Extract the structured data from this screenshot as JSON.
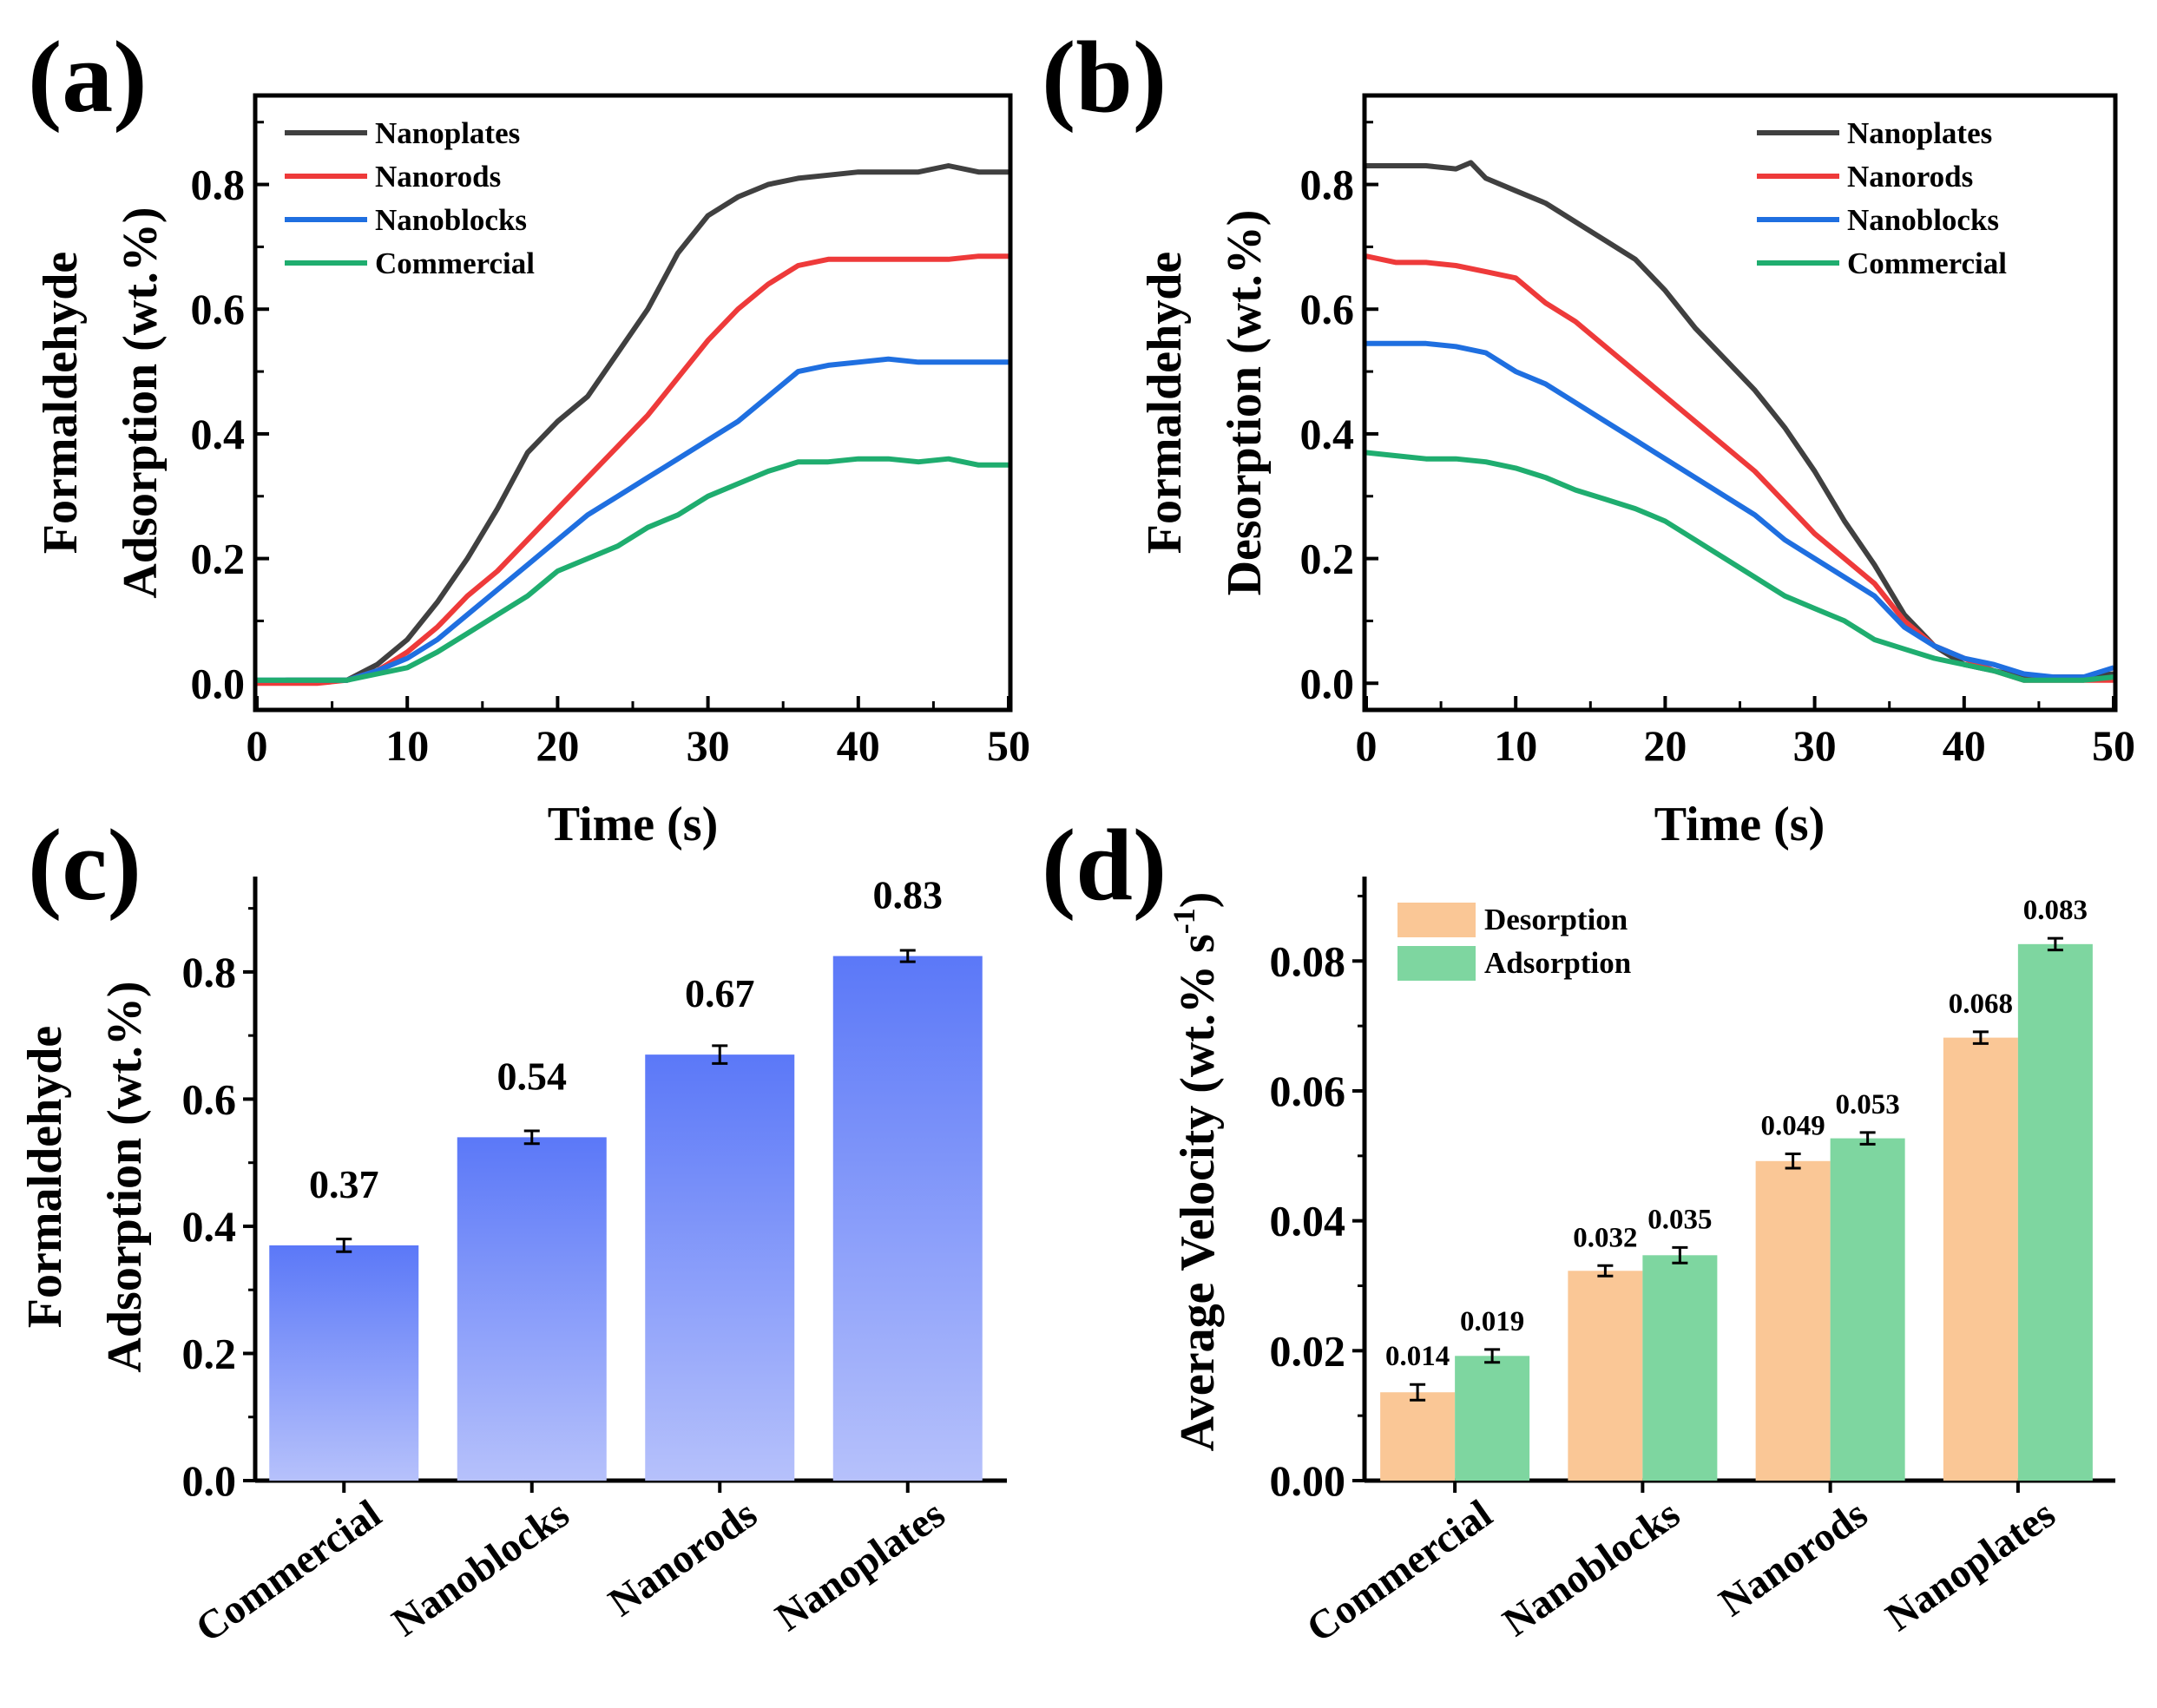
{
  "colors": {
    "nanoplates": "#404040",
    "nanorods": "#ee3a3a",
    "nanoblocks": "#1f6fe0",
    "commercial": "#1fad6f",
    "bar_top": "#5b78f8",
    "bar_bottom": "#b6c1fb",
    "desorption": "#fac796",
    "adsorption": "#7ed6a0"
  },
  "chart_data": [
    {
      "id": "a",
      "panel_label": "(a)",
      "type": "line",
      "xlabel": "Time (s)",
      "ylabel_line1": "Formaldehyde",
      "ylabel_line2": "Adsorption (wt.%)",
      "xlim": [
        0,
        50
      ],
      "ylim": [
        -0.04,
        0.94
      ],
      "xticks": [
        0,
        10,
        20,
        30,
        40,
        50
      ],
      "xtick_labels": [
        "0",
        "10",
        "20",
        "30",
        "40",
        "50"
      ],
      "yticks": [
        0.0,
        0.2,
        0.4,
        0.6,
        0.8
      ],
      "ytick_labels": [
        "0.0",
        "0.2",
        "0.4",
        "0.6",
        "0.8"
      ],
      "legend_position": "top-left",
      "series": [
        {
          "name": "Nanoplates",
          "color_key": "nanoplates",
          "x": [
            0,
            2,
            4,
            6,
            8,
            10,
            12,
            14,
            16,
            18,
            20,
            22,
            24,
            26,
            28,
            30,
            32,
            34,
            36,
            38,
            40,
            42,
            44,
            46,
            48,
            50
          ],
          "y": [
            0.0,
            0.005,
            0.005,
            0.005,
            0.03,
            0.07,
            0.13,
            0.2,
            0.28,
            0.37,
            0.42,
            0.46,
            0.53,
            0.6,
            0.69,
            0.75,
            0.78,
            0.8,
            0.81,
            0.815,
            0.82,
            0.82,
            0.82,
            0.83,
            0.82,
            0.82
          ]
        },
        {
          "name": "Nanorods",
          "color_key": "nanorods",
          "x": [
            0,
            2,
            4,
            6,
            8,
            10,
            12,
            14,
            16,
            18,
            20,
            22,
            24,
            26,
            28,
            30,
            32,
            34,
            36,
            38,
            40,
            42,
            44,
            46,
            48,
            50
          ],
          "y": [
            0.0,
            0.0,
            0.0,
            0.005,
            0.02,
            0.05,
            0.09,
            0.14,
            0.18,
            0.23,
            0.28,
            0.33,
            0.38,
            0.43,
            0.49,
            0.55,
            0.6,
            0.64,
            0.67,
            0.68,
            0.68,
            0.68,
            0.68,
            0.68,
            0.685,
            0.685
          ]
        },
        {
          "name": "Nanoblocks",
          "color_key": "nanoblocks",
          "x": [
            0,
            2,
            4,
            6,
            8,
            10,
            12,
            14,
            16,
            18,
            20,
            22,
            24,
            26,
            28,
            30,
            32,
            34,
            36,
            38,
            40,
            42,
            44,
            46,
            48,
            50
          ],
          "y": [
            0.005,
            0.005,
            0.005,
            0.005,
            0.02,
            0.04,
            0.07,
            0.11,
            0.15,
            0.19,
            0.23,
            0.27,
            0.3,
            0.33,
            0.36,
            0.39,
            0.42,
            0.46,
            0.5,
            0.51,
            0.515,
            0.52,
            0.515,
            0.515,
            0.515,
            0.515
          ]
        },
        {
          "name": "Commercial",
          "color_key": "commercial",
          "x": [
            0,
            2,
            4,
            6,
            8,
            10,
            12,
            14,
            16,
            18,
            20,
            22,
            24,
            26,
            28,
            30,
            32,
            34,
            36,
            38,
            40,
            42,
            44,
            46,
            48,
            50
          ],
          "y": [
            0.005,
            0.005,
            0.005,
            0.005,
            0.015,
            0.025,
            0.05,
            0.08,
            0.11,
            0.14,
            0.18,
            0.2,
            0.22,
            0.25,
            0.27,
            0.3,
            0.32,
            0.34,
            0.355,
            0.355,
            0.36,
            0.36,
            0.355,
            0.36,
            0.35,
            0.35
          ]
        }
      ]
    },
    {
      "id": "b",
      "panel_label": "(b)",
      "type": "line",
      "xlabel": "Time (s)",
      "ylabel_line1": "Formaldehyde",
      "ylabel_line2": "Desorption (wt.%)",
      "xlim": [
        0,
        50
      ],
      "ylim": [
        -0.04,
        0.94
      ],
      "xticks": [
        0,
        10,
        20,
        30,
        40,
        50
      ],
      "xtick_labels": [
        "0",
        "10",
        "20",
        "30",
        "40",
        "50"
      ],
      "yticks": [
        0.0,
        0.2,
        0.4,
        0.6,
        0.8
      ],
      "ytick_labels": [
        "0.0",
        "0.2",
        "0.4",
        "0.6",
        "0.8"
      ],
      "legend_position": "top-right",
      "series": [
        {
          "name": "Nanoplates",
          "color_key": "nanoplates",
          "x": [
            0,
            2,
            4,
            6,
            7,
            8,
            10,
            12,
            14,
            16,
            18,
            20,
            22,
            24,
            26,
            28,
            30,
            32,
            34,
            36,
            38,
            40,
            42,
            44,
            46,
            48,
            50
          ],
          "y": [
            0.83,
            0.83,
            0.83,
            0.825,
            0.835,
            0.81,
            0.79,
            0.77,
            0.74,
            0.71,
            0.68,
            0.63,
            0.57,
            0.52,
            0.47,
            0.41,
            0.34,
            0.26,
            0.19,
            0.11,
            0.06,
            0.03,
            0.02,
            0.01,
            0.01,
            0.01,
            0.015
          ]
        },
        {
          "name": "Nanorods",
          "color_key": "nanorods",
          "x": [
            0,
            2,
            4,
            6,
            8,
            10,
            12,
            14,
            16,
            18,
            20,
            22,
            24,
            26,
            28,
            30,
            32,
            34,
            36,
            38,
            40,
            42,
            44,
            46,
            48,
            50
          ],
          "y": [
            0.685,
            0.675,
            0.675,
            0.67,
            0.66,
            0.65,
            0.61,
            0.58,
            0.54,
            0.5,
            0.46,
            0.42,
            0.38,
            0.34,
            0.29,
            0.24,
            0.2,
            0.16,
            0.1,
            0.06,
            0.04,
            0.02,
            0.005,
            0.005,
            0.005,
            0.005
          ]
        },
        {
          "name": "Nanoblocks",
          "color_key": "nanoblocks",
          "x": [
            0,
            2,
            4,
            6,
            8,
            10,
            12,
            14,
            16,
            18,
            20,
            22,
            24,
            26,
            28,
            30,
            32,
            34,
            36,
            38,
            40,
            42,
            44,
            46,
            48,
            50
          ],
          "y": [
            0.545,
            0.545,
            0.545,
            0.54,
            0.53,
            0.5,
            0.48,
            0.45,
            0.42,
            0.39,
            0.36,
            0.33,
            0.3,
            0.27,
            0.23,
            0.2,
            0.17,
            0.14,
            0.09,
            0.06,
            0.04,
            0.03,
            0.015,
            0.01,
            0.01,
            0.025
          ]
        },
        {
          "name": "Commercial",
          "color_key": "commercial",
          "x": [
            0,
            2,
            4,
            6,
            8,
            10,
            12,
            14,
            16,
            18,
            20,
            22,
            24,
            26,
            28,
            30,
            32,
            34,
            36,
            38,
            40,
            42,
            44,
            46,
            48,
            50
          ],
          "y": [
            0.37,
            0.365,
            0.36,
            0.36,
            0.355,
            0.345,
            0.33,
            0.31,
            0.295,
            0.28,
            0.26,
            0.23,
            0.2,
            0.17,
            0.14,
            0.12,
            0.1,
            0.07,
            0.055,
            0.04,
            0.03,
            0.02,
            0.005,
            0.005,
            0.005,
            0.01
          ]
        }
      ]
    },
    {
      "id": "c",
      "panel_label": "(c)",
      "type": "bar",
      "xlabel": "",
      "ylabel_line1": "Formaldehyde",
      "ylabel_line2": "Adsorption (wt.%)",
      "categories": [
        "Commercial",
        "Nanoblocks",
        "Nanorods",
        "Nanoplates"
      ],
      "values": [
        0.37,
        0.54,
        0.67,
        0.825
      ],
      "errors": [
        0.01,
        0.01,
        0.014,
        0.009
      ],
      "value_labels": [
        "0.37",
        "0.54",
        "0.67",
        "0.83"
      ],
      "ylim": [
        0,
        0.95
      ],
      "yticks": [
        0.0,
        0.2,
        0.4,
        0.6,
        0.8
      ],
      "ytick_labels": [
        "0.0",
        "0.2",
        "0.4",
        "0.6",
        "0.8"
      ]
    },
    {
      "id": "d",
      "panel_label": "(d)",
      "type": "bar",
      "xlabel": "",
      "ylabel_main": "Average Velocity (wt.% s",
      "ylabel_sup": "-1",
      "ylabel_end": ")",
      "categories": [
        "Commercial",
        "Nanoblocks",
        "Nanorods",
        "Nanoplates"
      ],
      "ylim": [
        0,
        0.093
      ],
      "yticks": [
        0.0,
        0.02,
        0.04,
        0.06,
        0.08
      ],
      "ytick_labels": [
        "0.00",
        "0.02",
        "0.04",
        "0.06",
        "0.08"
      ],
      "legend_position": "top-left",
      "series": [
        {
          "name": "Desorption",
          "color_key": "desorption",
          "values": [
            0.0136,
            0.0323,
            0.0492,
            0.0682
          ],
          "errors": [
            0.0012,
            0.0008,
            0.0011,
            0.0009
          ],
          "value_labels": [
            "0.014",
            "0.032",
            "0.049",
            "0.068"
          ]
        },
        {
          "name": "Adsorption",
          "color_key": "adsorption",
          "values": [
            0.0192,
            0.0347,
            0.0527,
            0.0826
          ],
          "errors": [
            0.001,
            0.0012,
            0.0009,
            0.0009
          ],
          "value_labels": [
            "0.019",
            "0.035",
            "0.053",
            "0.083"
          ]
        }
      ]
    }
  ]
}
